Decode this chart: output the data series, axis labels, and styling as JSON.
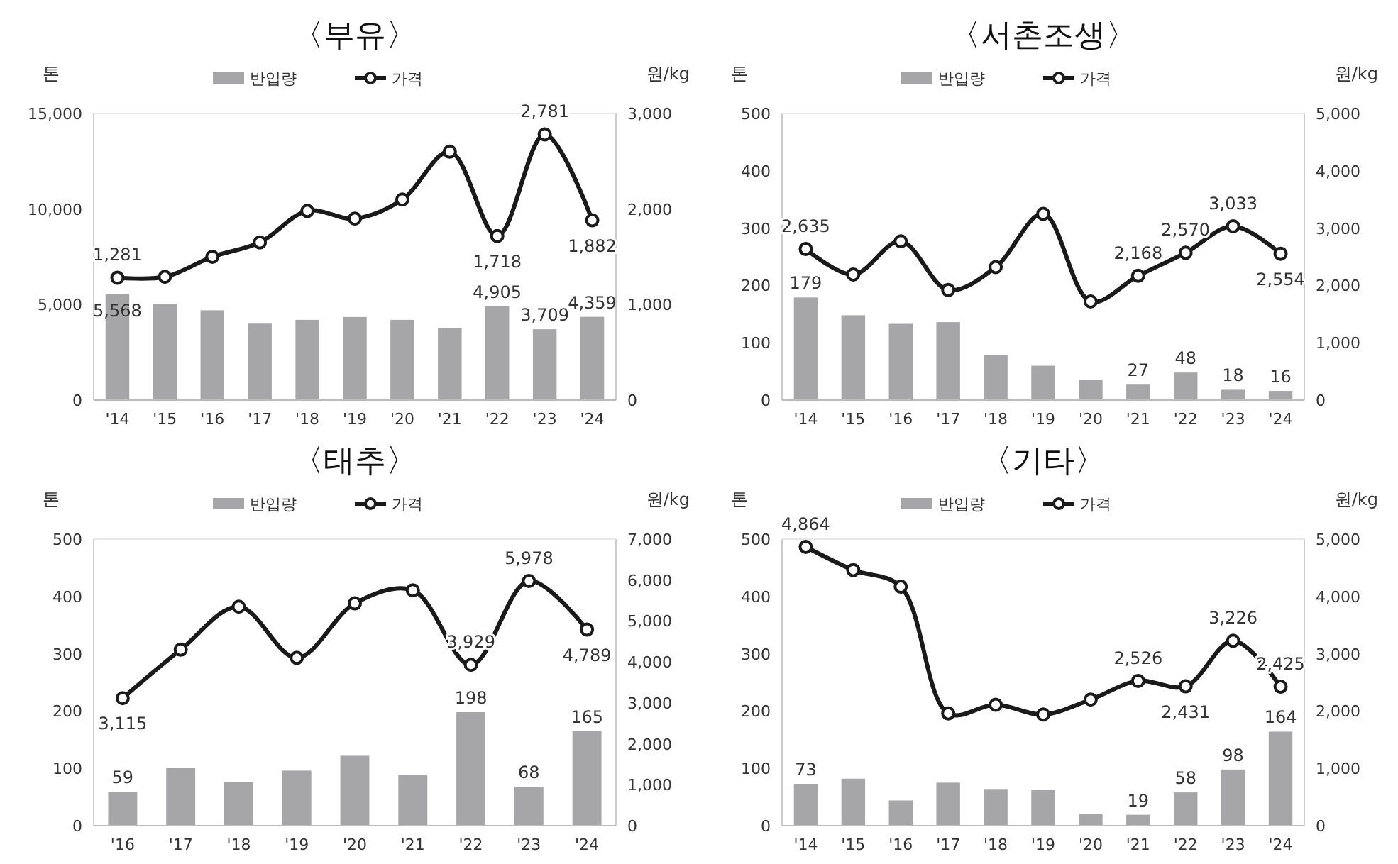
{
  "chart_data": [
    {
      "type": "bar",
      "title": "〈부유〉",
      "ylabel": "톤",
      "y2label": "원/kg",
      "legend": "top",
      "categories": [
        "'14",
        "'15",
        "'16",
        "'17",
        "'18",
        "'19",
        "'20",
        "'21",
        "'22",
        "'23",
        "'24"
      ],
      "ylim": [
        0,
        15000
      ],
      "yticks": [
        {
          "value": 0,
          "label": "0"
        },
        {
          "value": 5000,
          "label": "5,000"
        },
        {
          "value": 10000,
          "label": "10,000"
        },
        {
          "value": 15000,
          "label": "15,000"
        }
      ],
      "y2lim": [
        0,
        3000
      ],
      "y2ticks": [
        {
          "value": 0,
          "label": "0"
        },
        {
          "value": 1000,
          "label": "1,000"
        },
        {
          "value": 2000,
          "label": "2,000"
        },
        {
          "value": 3000,
          "label": "3,000"
        }
      ],
      "series": [
        {
          "name": "반입량",
          "color": "#a6a6a8",
          "values": [
            5568,
            5050,
            4700,
            4000,
            4200,
            4350,
            4200,
            3750,
            4905,
            3709,
            4359
          ],
          "value_labels": [
            "5,568",
            null,
            null,
            null,
            null,
            null,
            null,
            null,
            "4,905",
            "3,709",
            "4,359"
          ]
        },
        {
          "name": "가격",
          "type": "line",
          "axis": "y2",
          "color": "#1a1a1a",
          "marker": "circle",
          "values": [
            1281,
            1290,
            1500,
            1650,
            1980,
            1900,
            2100,
            2600,
            1718,
            2781,
            1882
          ],
          "value_labels": [
            "1,281",
            null,
            null,
            null,
            null,
            null,
            null,
            null,
            "1,718",
            "2,781",
            "1,882"
          ]
        }
      ]
    },
    {
      "type": "bar",
      "title": "〈서촌조생〉",
      "ylabel": "톤",
      "y2label": "원/kg",
      "legend": "top",
      "categories": [
        "'14",
        "'15",
        "'16",
        "'17",
        "'18",
        "'19",
        "'20",
        "'21",
        "'22",
        "'23",
        "'24"
      ],
      "ylim": [
        0,
        500
      ],
      "yticks": [
        0,
        100,
        200,
        300,
        400,
        500
      ],
      "y2lim": [
        0,
        5000
      ],
      "y2ticks": [
        {
          "value": 0,
          "label": "0"
        },
        {
          "value": 1000,
          "label": "1,000"
        },
        {
          "value": 2000,
          "label": "2,000"
        },
        {
          "value": 3000,
          "label": "3,000"
        },
        {
          "value": 4000,
          "label": "4,000"
        },
        {
          "value": 5000,
          "label": "5,000"
        }
      ],
      "series": [
        {
          "name": "반입량",
          "color": "#a6a6a8",
          "values": [
            179,
            148,
            133,
            136,
            78,
            60,
            35,
            27,
            48,
            18,
            16
          ],
          "value_labels": [
            "179",
            null,
            null,
            null,
            null,
            null,
            null,
            "27",
            "48",
            "18",
            "16"
          ]
        },
        {
          "name": "가격",
          "type": "line",
          "axis": "y2",
          "color": "#1a1a1a",
          "marker": "circle",
          "values": [
            2635,
            2190,
            2770,
            1920,
            2320,
            3250,
            1720,
            2168,
            2570,
            3033,
            2554
          ],
          "value_labels": [
            "2,635",
            null,
            null,
            null,
            null,
            null,
            null,
            "2,168",
            "2,570",
            "3,033",
            "2,554"
          ]
        }
      ]
    },
    {
      "type": "bar",
      "title": "〈태추〉",
      "ylabel": "톤",
      "y2label": "원/kg",
      "legend": "top",
      "categories": [
        "'16",
        "'17",
        "'18",
        "'19",
        "'20",
        "'21",
        "'22",
        "'23",
        "'24"
      ],
      "ylim": [
        0,
        500
      ],
      "yticks": [
        0,
        100,
        200,
        300,
        400,
        500
      ],
      "y2lim": [
        0,
        7000
      ],
      "y2ticks": [
        {
          "value": 0,
          "label": "0"
        },
        {
          "value": 1000,
          "label": "1,000"
        },
        {
          "value": 2000,
          "label": "2,000"
        },
        {
          "value": 3000,
          "label": "3,000"
        },
        {
          "value": 4000,
          "label": "4,000"
        },
        {
          "value": 5000,
          "label": "5,000"
        },
        {
          "value": 6000,
          "label": "6,000"
        },
        {
          "value": 7000,
          "label": "7,000"
        }
      ],
      "series": [
        {
          "name": "반입량",
          "color": "#a6a6a8",
          "values": [
            59,
            101,
            76,
            96,
            122,
            89,
            198,
            68,
            165
          ],
          "value_labels": [
            "59",
            null,
            null,
            null,
            null,
            null,
            "198",
            "68",
            "165"
          ]
        },
        {
          "name": "가격",
          "type": "line",
          "axis": "y2",
          "color": "#1a1a1a",
          "marker": "circle",
          "values": [
            3115,
            4300,
            5350,
            4100,
            5430,
            5750,
            3929,
            5978,
            4789
          ],
          "value_labels": [
            "3,115",
            null,
            null,
            null,
            null,
            null,
            "3,929",
            "5,978",
            "4,789"
          ]
        }
      ]
    },
    {
      "type": "bar",
      "title": "〈기타〉",
      "ylabel": "톤",
      "y2label": "원/kg",
      "legend": "top",
      "categories": [
        "'14",
        "'15",
        "'16",
        "'17",
        "'18",
        "'19",
        "'20",
        "'21",
        "'22",
        "'23",
        "'24"
      ],
      "ylim": [
        0,
        500
      ],
      "yticks": [
        0,
        100,
        200,
        300,
        400,
        500
      ],
      "y2lim": [
        0,
        5000
      ],
      "y2ticks": [
        {
          "value": 0,
          "label": "0"
        },
        {
          "value": 1000,
          "label": "1,000"
        },
        {
          "value": 2000,
          "label": "2,000"
        },
        {
          "value": 3000,
          "label": "3,000"
        },
        {
          "value": 4000,
          "label": "4,000"
        },
        {
          "value": 5000,
          "label": "5,000"
        }
      ],
      "series": [
        {
          "name": "반입량",
          "color": "#a6a6a8",
          "values": [
            73,
            82,
            44,
            75,
            64,
            62,
            21,
            19,
            58,
            98,
            164
          ],
          "value_labels": [
            "73",
            null,
            null,
            null,
            null,
            null,
            null,
            "19",
            "58",
            "98",
            "164"
          ]
        },
        {
          "name": "가격",
          "type": "line",
          "axis": "y2",
          "color": "#1a1a1a",
          "marker": "circle",
          "values": [
            4864,
            4460,
            4170,
            1960,
            2110,
            1940,
            2200,
            2526,
            2431,
            3226,
            2425
          ],
          "value_labels": [
            "4,864",
            null,
            null,
            null,
            null,
            null,
            null,
            "2,526",
            "2,431",
            "3,226",
            "2,425"
          ]
        }
      ]
    }
  ]
}
